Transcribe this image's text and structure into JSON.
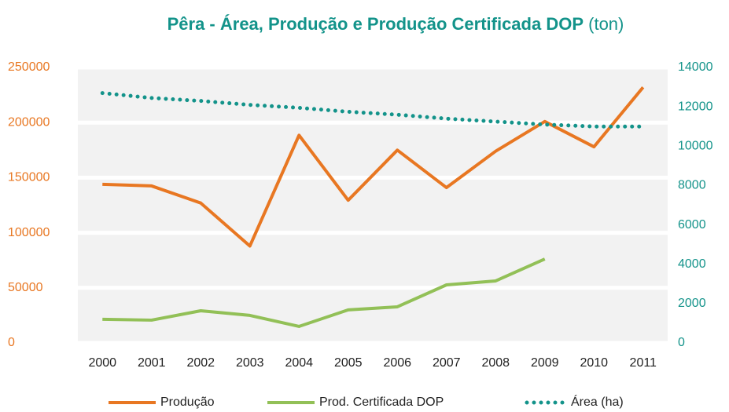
{
  "chart_data": {
    "type": "line",
    "title": "Pêra - Área, Produção e Produção Certificada DOP",
    "title_unit": "(ton)",
    "categories": [
      "2000",
      "2001",
      "2002",
      "2003",
      "2004",
      "2005",
      "2006",
      "2007",
      "2008",
      "2009",
      "2010",
      "2011"
    ],
    "series": [
      {
        "name": "Produção",
        "color": "#e87722",
        "style": "solid",
        "values": [
          144000,
          142500,
          127000,
          88000,
          188500,
          129500,
          175000,
          141000,
          174000,
          201000,
          178000,
          232000
        ]
      },
      {
        "name": "Prod. Certificada DOP",
        "color": "#92c057",
        "style": "solid",
        "values": [
          21500,
          20700,
          29200,
          25000,
          15000,
          30000,
          32800,
          52700,
          56300,
          76200,
          null,
          null
        ]
      },
      {
        "name": "Área (ha)",
        "color": "#13938a",
        "style": "dotted",
        "axis": "y2",
        "values": [
          12700,
          12450,
          12300,
          12100,
          11950,
          11750,
          11600,
          11400,
          11250,
          11100,
          11000,
          11000
        ]
      }
    ],
    "ylim": [
      0,
      250000
    ],
    "yticks": [
      0,
      50000,
      100000,
      150000,
      200000,
      250000
    ],
    "y2lim": [
      0,
      14000
    ],
    "y2ticks": [
      0,
      2000,
      4000,
      6000,
      8000,
      10000,
      12000,
      14000
    ],
    "grid": true,
    "legend": "bottom",
    "ytick_color": "#e87722",
    "y2tick_color": "#13938a",
    "title_color": "#13938a"
  }
}
